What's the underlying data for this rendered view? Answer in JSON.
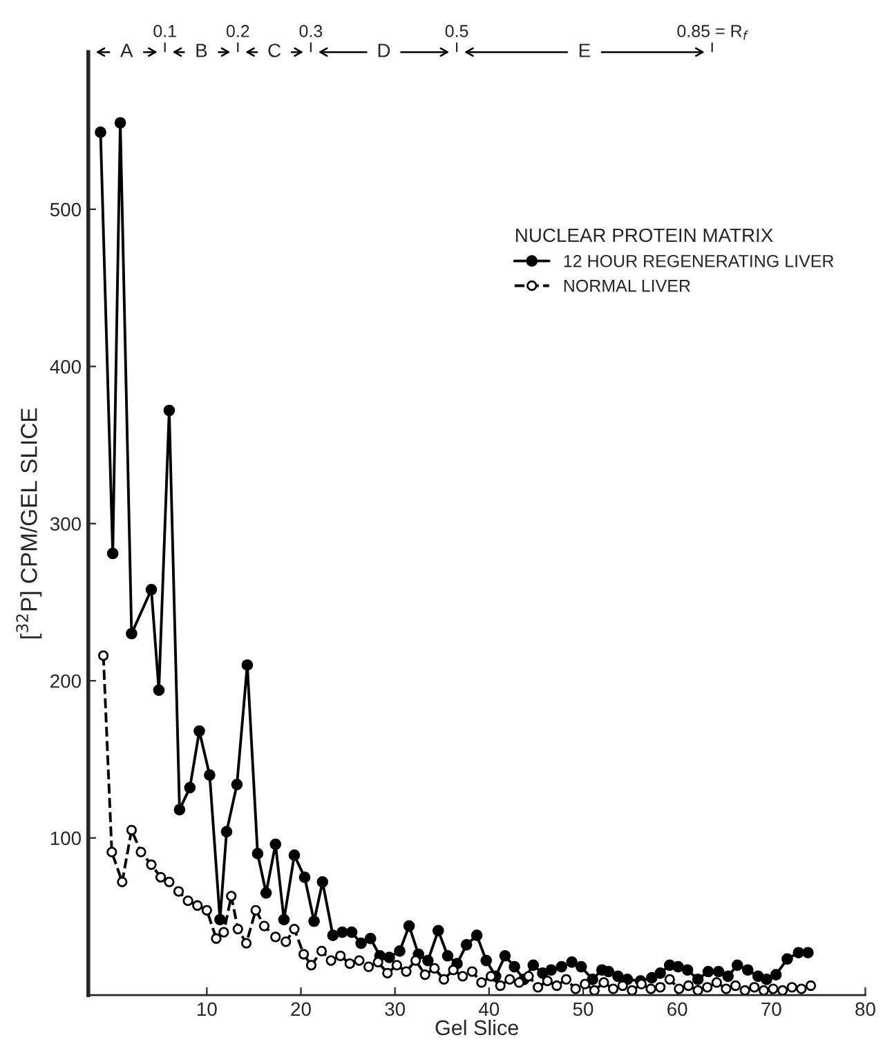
{
  "chart_data": {
    "type": "line",
    "xlabel": "Gel Slice",
    "ylabel": "[$^{32}$P] CPM/GEL SLICE",
    "legend_title": "NUCLEAR PROTEIN MATRIX",
    "legend": "top right",
    "marker": "circle",
    "grid": false,
    "xlim": [
      -2.6,
      80
    ],
    "ylim": [
      0,
      600
    ],
    "xticks": [
      10,
      20,
      30,
      40,
      50,
      60,
      70,
      80
    ],
    "yticks": [
      100,
      200,
      300,
      400,
      500
    ],
    "x2lim": [
      -0.005,
      1.06
    ],
    "x2ticks": [
      0.1,
      0.2,
      0.3,
      0.5,
      {
        "value": 0.85,
        "label": "0.85 = R$_{f}$"
      }
    ],
    "annotations": [
      "A",
      "B",
      "C",
      "D",
      "E"
    ],
    "series": [
      {
        "name": "12 HOUR REGENERATING LIVER",
        "color": "#000000",
        "line_style": "solid",
        "x": [
          -1.3,
          0,
          0.8,
          2,
          4.1,
          4.9,
          6,
          7.1,
          8.2,
          9.2,
          10.3,
          11.4,
          12.1,
          13.2,
          14.3,
          15.4,
          16.3,
          17.3,
          18.2,
          19.3,
          20.4,
          21.4,
          22.3,
          23.4,
          24.4,
          25.4,
          26.4,
          27.4,
          28.4,
          29.4,
          30.5,
          31.5,
          32.5,
          33.5,
          34.6,
          35.6,
          36.6,
          37.6,
          38.7,
          39.7,
          40.7,
          41.7,
          42.7,
          43.7,
          44.7,
          45.7,
          46.6,
          47.7,
          48.8,
          49.8,
          51,
          52,
          52.7,
          53.7,
          54.7,
          56.1,
          57.3,
          58.2,
          59.2,
          60.1,
          61.1,
          62.2,
          63.3,
          64.4,
          65.4,
          66.4,
          67.5,
          68.6,
          69.5,
          70.5,
          71.7,
          72.9,
          73.9
        ],
        "values": [
          549,
          281,
          555,
          230,
          258,
          194,
          372,
          118,
          132,
          168,
          140,
          48,
          104,
          134,
          210,
          90,
          65,
          96,
          48,
          89,
          75,
          47,
          72,
          38,
          40,
          40,
          33,
          36,
          25,
          24,
          28,
          44,
          26,
          22,
          41,
          25,
          20,
          32,
          38,
          22,
          12,
          25,
          18,
          10,
          19,
          14,
          16,
          18,
          21,
          18,
          10,
          16,
          15,
          12,
          10,
          9,
          11,
          14,
          19,
          18,
          16,
          10,
          15,
          15,
          12,
          19,
          16,
          12,
          10,
          13,
          23,
          27,
          27
        ]
      },
      {
        "name": "NORMAL LIVER",
        "color": "#000000",
        "line_style": "dashed",
        "x": [
          -1,
          -0.1,
          1,
          2,
          3,
          4.1,
          5.1,
          6,
          7,
          8,
          9,
          10,
          11,
          11.8,
          12.6,
          13.3,
          14.2,
          15.2,
          16.1,
          17.3,
          18.4,
          19.3,
          20.3,
          21.1,
          22.2,
          23.2,
          24.2,
          25.2,
          26.2,
          27.2,
          28.2,
          29.2,
          30.2,
          31.2,
          32.2,
          33.2,
          34.2,
          35.2,
          36.2,
          37.2,
          38.2,
          39.2,
          40.2,
          41.2,
          42.2,
          43.2,
          44.2,
          45.2,
          46.2,
          47.2,
          48.2,
          49.2,
          50.2,
          51.2,
          52.2,
          53.2,
          54.2,
          55.2,
          56.2,
          57.2,
          58.2,
          59.2,
          60.2,
          61.2,
          62.2,
          63.2,
          64.2,
          65.2,
          66.2,
          67.2,
          68.2,
          69.2,
          70.2,
          71.2,
          72.2,
          73.2,
          74.2
        ],
        "values": [
          216,
          91,
          72,
          105,
          91,
          83,
          75,
          72,
          66,
          60,
          57,
          54,
          36,
          40,
          63,
          42,
          33,
          54,
          44,
          37,
          34,
          42,
          26,
          19,
          28,
          22,
          25,
          20,
          22,
          18,
          21,
          14,
          19,
          15,
          22,
          13,
          17,
          10,
          16,
          12,
          15,
          8,
          12,
          6,
          10,
          8,
          12,
          5,
          9,
          6,
          10,
          4,
          7,
          3,
          8,
          4,
          6,
          3,
          7,
          4,
          5,
          10,
          4,
          6,
          3,
          5,
          8,
          4,
          6,
          3,
          5,
          3,
          4,
          3,
          5,
          4,
          6
        ]
      }
    ]
  }
}
